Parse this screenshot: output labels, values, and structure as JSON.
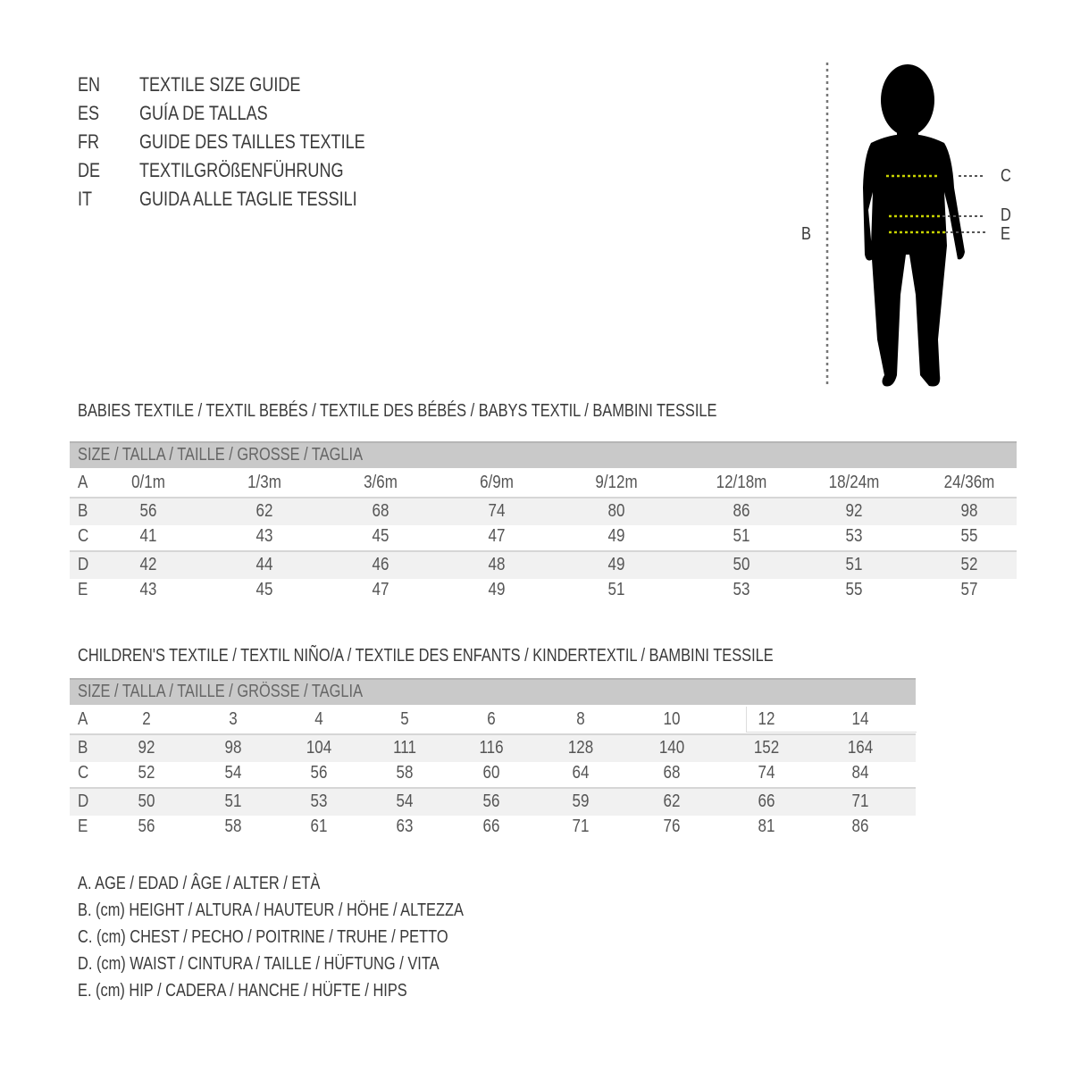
{
  "titles": [
    {
      "code": "EN",
      "text": "TEXTILE SIZE GUIDE"
    },
    {
      "code": "ES",
      "text": "GUÍA DE TALLAS"
    },
    {
      "code": "FR",
      "text": "GUIDE DES TAILLES TEXTILE"
    },
    {
      "code": "DE",
      "text": "TEXTILGRÖßENFÜHRUNG"
    },
    {
      "code": "IT",
      "text": "GUIDA ALLE TAGLIE TESSILI"
    }
  ],
  "figure": {
    "height_label": "B",
    "chest_label": "C",
    "waist_label": "D",
    "hip_label": "E",
    "measure_line_color": "#c8d400"
  },
  "babies": {
    "title": "BABIES TEXTILE / TEXTIL BEBÉS / TEXTILE DES BÉBÉS / BABYS TEXTIL  / BAMBINI TESSILE",
    "header": "SIZE / TALLA / TAILLE / GROSSE / TAGLIA",
    "rows": [
      {
        "label": "A",
        "values": [
          "0/1m",
          "1/3m",
          "3/6m",
          "6/9m",
          "9/12m",
          "12/18m",
          "18/24m",
          "24/36m"
        ]
      },
      {
        "label": "B",
        "values": [
          "56",
          "62",
          "68",
          "74",
          "80",
          "86",
          "92",
          "98"
        ]
      },
      {
        "label": "C",
        "values": [
          "41",
          "43",
          "45",
          "47",
          "49",
          "51",
          "53",
          "55"
        ]
      },
      {
        "label": "D",
        "values": [
          "42",
          "44",
          "46",
          "48",
          "49",
          "50",
          "51",
          "52"
        ]
      },
      {
        "label": "E",
        "values": [
          "43",
          "45",
          "47",
          "49",
          "51",
          "53",
          "55",
          "57"
        ]
      }
    ]
  },
  "children": {
    "title": "CHILDREN'S TEXTILE / TEXTIL NIÑO/A / TEXTILE DES ENFANTS / KINDERTEXTIL / BAMBINI TESSILE",
    "header": "SIZE / TALLA / TAILLE / GRÖSSE / TAGLIA",
    "rows": [
      {
        "label": "A",
        "values": [
          "2",
          "3",
          "4",
          "5",
          "6",
          "8",
          "10",
          "12",
          "14"
        ]
      },
      {
        "label": "B",
        "values": [
          "92",
          "98",
          "104",
          "111",
          "116",
          "128",
          "140",
          "152",
          "164"
        ]
      },
      {
        "label": "C",
        "values": [
          "52",
          "54",
          "56",
          "58",
          "60",
          "64",
          "68",
          "74",
          "84"
        ]
      },
      {
        "label": "D",
        "values": [
          "50",
          "51",
          "53",
          "54",
          "56",
          "59",
          "62",
          "66",
          "71"
        ]
      },
      {
        "label": "E",
        "values": [
          "56",
          "58",
          "61",
          "63",
          "66",
          "71",
          "76",
          "81",
          "86"
        ]
      }
    ]
  },
  "legend": [
    "A. AGE / EDAD / ÂGE / ALTER / ETÀ",
    "B. (cm) HEIGHT / ALTURA / HAUTEUR / HÖHE / ALTEZZA",
    "C. (cm) CHEST / PECHO / POITRINE / TRUHE / PETTO",
    "D. (cm) WAIST / CINTURA / TAILLE / HÜFTUNG / VITA",
    "E. (cm) HIP / CADERA / HANCHE / HÜFTE / HIPS"
  ]
}
